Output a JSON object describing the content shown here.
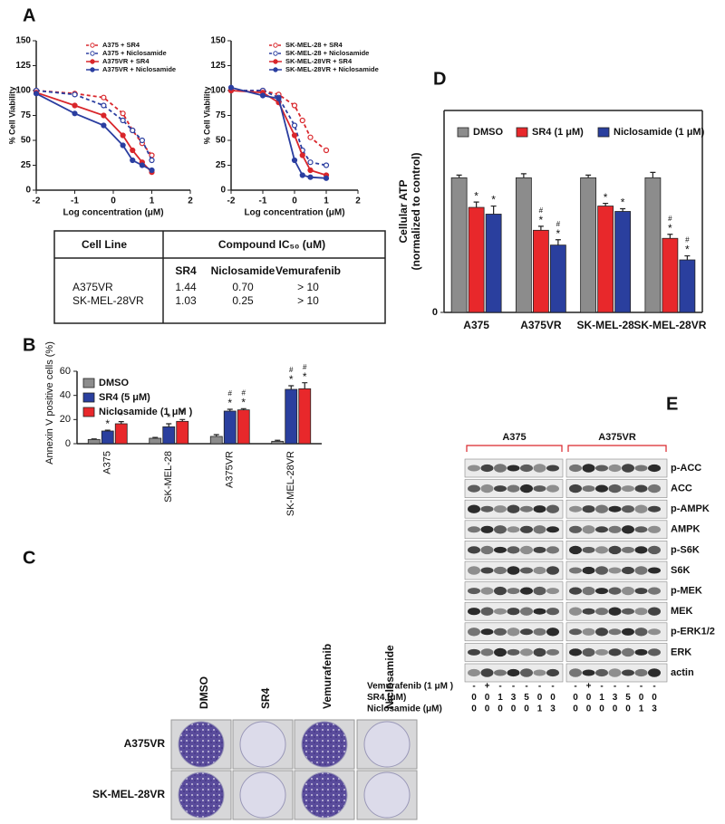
{
  "figure": {
    "panel_labels": [
      "A",
      "B",
      "C",
      "D",
      "E"
    ]
  },
  "chart_data": [
    {
      "type": "line",
      "ylabel": "% Cell Viability",
      "xlabel": "Log concentration (μM)",
      "x": [
        -2,
        -1,
        -0.25,
        0.25,
        0.5,
        0.75,
        1
      ],
      "xlim": [
        -2,
        2
      ],
      "xticks": [
        -2,
        -1,
        0,
        1,
        2
      ],
      "ylim": [
        0,
        150
      ],
      "yticks": [
        0,
        25,
        50,
        75,
        100,
        125,
        150
      ],
      "series": [
        {
          "name": "A375 + SR4",
          "color": "#d9262b",
          "dashed": true,
          "filled": false,
          "values": [
            100,
            97,
            93,
            77,
            60,
            47,
            35
          ]
        },
        {
          "name": "A375 + Niclosamide",
          "color": "#2b3ea0",
          "dashed": true,
          "filled": false,
          "values": [
            100,
            96,
            85,
            70,
            60,
            50,
            30
          ]
        },
        {
          "name": "A375VR + SR4",
          "color": "#d9262b",
          "dashed": false,
          "filled": true,
          "values": [
            98,
            85,
            75,
            55,
            40,
            28,
            18
          ]
        },
        {
          "name": "A375VR + Niclosamide",
          "color": "#2b3ea0",
          "dashed": false,
          "filled": true,
          "values": [
            97,
            77,
            65,
            45,
            30,
            25,
            20
          ]
        }
      ]
    },
    {
      "type": "line",
      "ylabel": "% Cell Viability",
      "xlabel": "Log concentration (μM)",
      "x": [
        -2,
        -1,
        -0.5,
        0,
        0.25,
        0.5,
        1
      ],
      "xlim": [
        -2,
        2
      ],
      "xticks": [
        -2,
        -1,
        0,
        1,
        2
      ],
      "ylim": [
        0,
        150
      ],
      "yticks": [
        0,
        25,
        50,
        75,
        100,
        125,
        150
      ],
      "series": [
        {
          "name": "SK-MEL-28 + SR4",
          "color": "#d9262b",
          "dashed": true,
          "filled": false,
          "values": [
            100,
            100,
            96,
            85,
            70,
            53,
            40
          ]
        },
        {
          "name": "SK-MEL-28 + Niclosamide",
          "color": "#2b3ea0",
          "dashed": true,
          "filled": false,
          "values": [
            100,
            100,
            93,
            65,
            40,
            28,
            25
          ]
        },
        {
          "name": "SK-MEL-28VR + SR4",
          "color": "#d9262b",
          "dashed": false,
          "filled": true,
          "values": [
            100,
            98,
            88,
            55,
            35,
            20,
            15
          ]
        },
        {
          "name": "SK-MEL-28VR + Niclosamide",
          "color": "#2b3ea0",
          "dashed": false,
          "filled": true,
          "values": [
            103,
            95,
            92,
            30,
            15,
            13,
            12
          ]
        }
      ]
    },
    {
      "type": "bar",
      "ylabel": "Annexin V positive cells (%)",
      "categories": [
        "A375",
        "SK-MEL-28",
        "A375VR",
        "SK-MEL-28VR"
      ],
      "ylim": [
        0,
        60
      ],
      "yticks": [
        0,
        20,
        40,
        60
      ],
      "series": [
        {
          "name": "DMSO",
          "color": "#8c8c8c",
          "values": [
            3.5,
            4.5,
            6,
            2
          ],
          "errors": [
            0.5,
            0.7,
            1.5,
            0.8
          ],
          "significance": [
            null,
            null,
            null,
            null
          ]
        },
        {
          "name": "SR4 (5 μM)",
          "color": "#2a3f9e",
          "values": [
            10.5,
            14,
            27,
            45
          ],
          "errors": [
            0.7,
            2.5,
            1.5,
            3
          ],
          "significance": [
            [
              "*"
            ],
            [
              "*"
            ],
            [
              "#",
              "*"
            ],
            [
              "#",
              "*"
            ]
          ]
        },
        {
          "name": "Niclosamide (1 μM )",
          "color": "#e8282b",
          "values": [
            16.5,
            18.5,
            28,
            45.5
          ],
          "errors": [
            1.8,
            1.5,
            1,
            5
          ],
          "significance": [
            [
              "*"
            ],
            [
              "*"
            ],
            [
              "#",
              "*"
            ],
            [
              "#",
              "*"
            ]
          ]
        }
      ]
    },
    {
      "type": "bar",
      "ylabel": [
        "Cellular ATP",
        "(normalized to control)"
      ],
      "categories": [
        "A375",
        "A375VR",
        "SK-MEL-28",
        "SK-MEL-28VR"
      ],
      "ylim": [
        0,
        1.5
      ],
      "yticks": [
        0
      ],
      "series": [
        {
          "name": "DMSO",
          "color": "#8c8c8c",
          "values": [
            1.0,
            1.0,
            1.0,
            1.0
          ],
          "errors": [
            0.02,
            0.03,
            0.02,
            0.04
          ],
          "significance": [
            null,
            null,
            null,
            null
          ]
        },
        {
          "name": "SR4 (1 μM)",
          "color": "#e8282b",
          "values": [
            0.78,
            0.61,
            0.79,
            0.55
          ],
          "errors": [
            0.04,
            0.03,
            0.02,
            0.03
          ],
          "significance": [
            [
              "*"
            ],
            [
              "#",
              "*"
            ],
            [
              "*"
            ],
            [
              "#",
              "*"
            ]
          ]
        },
        {
          "name": "Niclosamide (1 μM)",
          "color": "#2a3f9e",
          "values": [
            0.73,
            0.5,
            0.75,
            0.39
          ],
          "errors": [
            0.06,
            0.04,
            0.02,
            0.03
          ],
          "significance": [
            [
              "*"
            ],
            [
              "#",
              "*"
            ],
            [
              "*"
            ],
            [
              "#",
              "*"
            ]
          ]
        }
      ]
    }
  ],
  "ic50_table": {
    "header": [
      "Cell Line",
      "Compound IC₅₀ (uM)"
    ],
    "columns": [
      "SR4",
      "Niclosamide",
      "Vemurafenib"
    ],
    "rows": [
      [
        "A375VR",
        "1.44",
        "0.70",
        "> 10"
      ],
      [
        "SK-MEL-28VR",
        "1.03",
        "0.25",
        "> 10"
      ]
    ]
  },
  "colony_assay": {
    "columns": [
      "DMSO",
      "SR4",
      "Vemurafenib",
      "Niclosamide"
    ],
    "rows": [
      "A375VR",
      "SK-MEL-28VR"
    ]
  },
  "western_blot": {
    "groups": [
      "A375",
      "A375VR"
    ],
    "proteins": [
      "p-ACC",
      "ACC",
      "p-AMPK",
      "AMPK",
      "p-S6K",
      "S6K",
      "p-MEK",
      "MEK",
      "p-ERK1/2",
      "ERK",
      "actin"
    ],
    "treatments": [
      {
        "label": "Vemurafenib (1 μM )",
        "lanes": [
          "-",
          "+",
          "-",
          "-",
          "-",
          "-",
          "-",
          "-",
          "+",
          "-",
          "-",
          "-",
          "-",
          "-"
        ]
      },
      {
        "label": "SR4 (μM)",
        "lanes": [
          "0",
          "0",
          "1",
          "3",
          "5",
          "0",
          "0",
          "0",
          "0",
          "1",
          "3",
          "5",
          "0",
          "0"
        ]
      },
      {
        "label": "Niclosamide (μM)",
        "lanes": [
          "0",
          "0",
          "0",
          "0",
          "0",
          "1",
          "3",
          "0",
          "0",
          "0",
          "0",
          "0",
          "1",
          "3"
        ]
      }
    ]
  }
}
